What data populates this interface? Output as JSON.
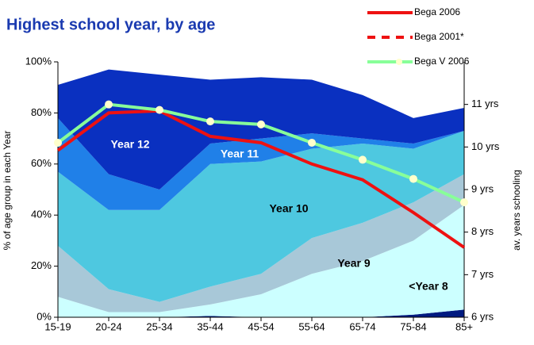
{
  "chart_data": {
    "type": "stacked_area_line",
    "title": "Highest school year, by age",
    "ylabel": "% of age group in each Year",
    "y2label": "av. years schooling",
    "categories": [
      "15-19",
      "20-24",
      "25-34",
      "35-44",
      "45-54",
      "55-64",
      "65-74",
      "75-84",
      "85+"
    ],
    "ylim": [
      0,
      100
    ],
    "yticks": [
      {
        "value": 0,
        "label": "0%"
      },
      {
        "value": 20,
        "label": "20%"
      },
      {
        "value": 40,
        "label": "40%"
      },
      {
        "value": 60,
        "label": "60%"
      },
      {
        "value": 80,
        "label": "80%"
      },
      {
        "value": 100,
        "label": "100%"
      }
    ],
    "y2lim": [
      6,
      12
    ],
    "y2ticks": [
      {
        "value": 6,
        "label": "6 yrs"
      },
      {
        "value": 7,
        "label": "7 yrs"
      },
      {
        "value": 8,
        "label": "8 yrs"
      },
      {
        "value": 9,
        "label": "9 yrs"
      },
      {
        "value": 10,
        "label": "10 yrs"
      },
      {
        "value": 11,
        "label": "11 yrs"
      }
    ],
    "areas": [
      {
        "color": "#001a80",
        "values": [
          0,
          0,
          0,
          0.5,
          0,
          0,
          0,
          1,
          3
        ]
      },
      {
        "name": "<Year 8",
        "color": "#ccffff",
        "values": [
          8,
          2,
          2,
          4.5,
          9,
          17,
          22,
          29,
          41
        ]
      },
      {
        "name": "Year 9",
        "color": "#a8c8d8",
        "values": [
          20,
          9,
          4,
          7,
          8,
          14,
          15,
          15,
          12
        ]
      },
      {
        "name": "Year 10",
        "color": "#4ec8e0",
        "values": [
          29,
          31,
          36,
          48,
          44,
          35,
          31,
          21,
          17
        ]
      },
      {
        "name": "Year 11",
        "color": "#2080e8",
        "values": [
          21,
          14,
          8,
          8,
          9,
          6,
          2,
          2,
          0
        ]
      },
      {
        "name": "Year 12",
        "color": "#0a30c0",
        "values": [
          13,
          41,
          45,
          25,
          24,
          21,
          17,
          10,
          9
        ]
      }
    ],
    "series": [
      {
        "name": "Bega 2006",
        "color": "#ee1111",
        "axis": "y2",
        "values": [
          9.92,
          10.8,
          10.85,
          10.25,
          10.1,
          9.6,
          9.23,
          8.46,
          7.64
        ]
      },
      {
        "name": "Bega 2001*",
        "color": "#ee1111",
        "axis": "y2",
        "dashed": true,
        "values": [
          null,
          null,
          null,
          null,
          null,
          null,
          null,
          null,
          null
        ]
      },
      {
        "name": "Bega V 2006",
        "color": "#88ff99",
        "axis": "y2",
        "markers": true,
        "values": [
          10.1,
          11.0,
          10.87,
          10.6,
          10.53,
          10.1,
          9.7,
          9.25,
          8.7
        ]
      }
    ]
  }
}
